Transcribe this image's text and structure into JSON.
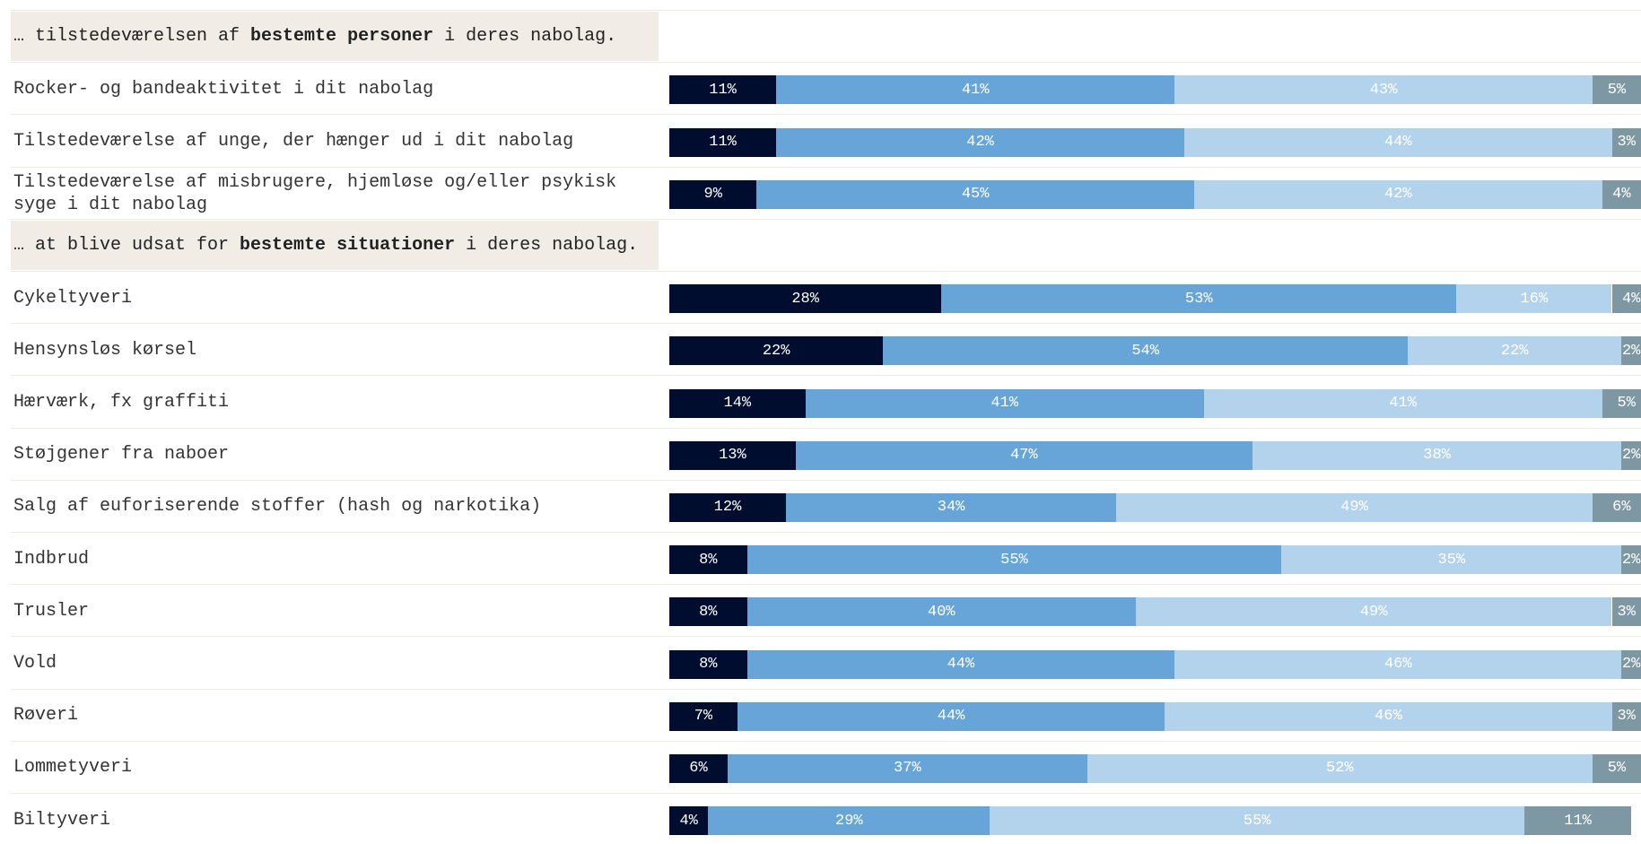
{
  "chart_data": {
    "type": "bar",
    "orientation": "horizontal",
    "stacked": true,
    "xlim": [
      0,
      100
    ],
    "colors": [
      "#000d2f",
      "#67a5d8",
      "#b3d3ec",
      "#7d97a3"
    ],
    "sections": [
      {
        "prefix": "… tilstedeværelsen af ",
        "bold": "bestemte personer",
        "suffix": " i deres nabolag.",
        "rows": [
          {
            "label": "Rocker- og bandeaktivitet i dit nabolag",
            "values": [
              11,
              41,
              43,
              5
            ],
            "value_labels": [
              "11%",
              "41%",
              "43%",
              "5%"
            ]
          },
          {
            "label": "Tilstedeværelse af unge, der hænger ud i dit nabolag",
            "values": [
              11,
              42,
              44,
              3
            ],
            "value_labels": [
              "11%",
              "42%",
              "44%",
              "3%"
            ]
          },
          {
            "label": "Tilstedeværelse af misbrugere, hjemløse og/eller psykisk syge i dit nabolag",
            "values": [
              9,
              45,
              42,
              4
            ],
            "value_labels": [
              "9%",
              "45%",
              "42%",
              "4%"
            ]
          }
        ]
      },
      {
        "prefix": "… at blive udsat for ",
        "bold": "bestemte situationer",
        "suffix": " i deres nabolag.",
        "rows": [
          {
            "label": "Cykeltyveri",
            "values": [
              28,
              53,
              16,
              4
            ],
            "value_labels": [
              "28%",
              "53%",
              "16%",
              "4%"
            ]
          },
          {
            "label": "Hensynsløs kørsel",
            "values": [
              22,
              54,
              22,
              2
            ],
            "value_labels": [
              "22%",
              "54%",
              "22%",
              "2%"
            ]
          },
          {
            "label": "Hærværk, fx graffiti",
            "values": [
              14,
              41,
              41,
              5
            ],
            "value_labels": [
              "14%",
              "41%",
              "41%",
              "5%"
            ]
          },
          {
            "label": "Støjgener fra naboer",
            "values": [
              13,
              47,
              38,
              2
            ],
            "value_labels": [
              "13%",
              "47%",
              "38%",
              "2%"
            ]
          },
          {
            "label": "Salg af euforiserende stoffer (hash og narkotika)",
            "values": [
              12,
              34,
              49,
              6
            ],
            "value_labels": [
              "12%",
              "34%",
              "49%",
              "6%"
            ]
          },
          {
            "label": "Indbrud",
            "values": [
              8,
              55,
              35,
              2
            ],
            "value_labels": [
              "8%",
              "55%",
              "35%",
              "2%"
            ]
          },
          {
            "label": "Trusler",
            "values": [
              8,
              40,
              49,
              3
            ],
            "value_labels": [
              "8%",
              "40%",
              "49%",
              "3%"
            ]
          },
          {
            "label": "Vold",
            "values": [
              8,
              44,
              46,
              2
            ],
            "value_labels": [
              "8%",
              "44%",
              "46%",
              "2%"
            ]
          },
          {
            "label": "Røveri",
            "values": [
              7,
              44,
              46,
              3
            ],
            "value_labels": [
              "7%",
              "44%",
              "46%",
              "3%"
            ]
          },
          {
            "label": "Lommetyveri",
            "values": [
              6,
              37,
              52,
              5
            ],
            "value_labels": [
              "6%",
              "37%",
              "52%",
              "5%"
            ]
          },
          {
            "label": "Biltyveri",
            "values": [
              4,
              29,
              55,
              11
            ],
            "value_labels": [
              "4%",
              "29%",
              "55%",
              "11%"
            ]
          }
        ]
      }
    ]
  }
}
